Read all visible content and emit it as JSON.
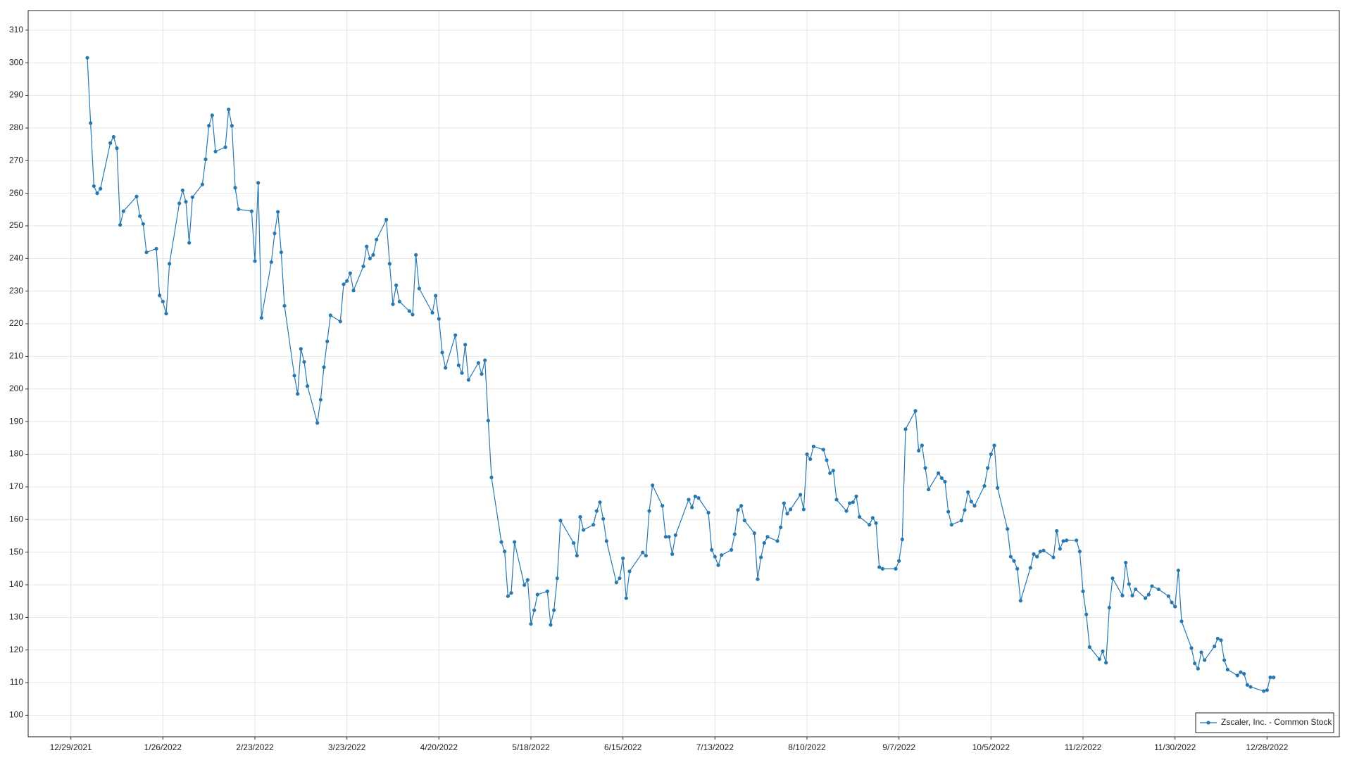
{
  "chart_data": {
    "type": "line",
    "series": [
      {
        "name": "Zscaler, Inc. - Common Stock",
        "color": "#2878b0",
        "values": [
          301.5,
          281.5,
          262.2,
          260,
          261.4,
          275.4,
          277.3,
          273.8,
          250.3,
          254.5,
          259,
          253,
          250.6,
          241.9,
          243,
          228.7,
          226.8,
          223.1,
          238.4,
          256.9,
          260.9,
          257.4,
          244.8,
          258.8,
          262.7,
          270.4,
          280.7,
          283.9,
          272.8,
          274.1,
          285.7,
          280.7,
          261.7,
          255.1,
          254.5,
          239.2,
          263.2,
          221.8,
          238.9,
          247.7,
          254.3,
          241.9,
          225.5,
          204.1,
          198.5,
          212.3,
          208.3,
          200.9,
          189.6,
          196.7,
          206.7,
          214.6,
          222.6,
          220.7,
          232.1,
          233.1,
          235.5,
          230.2,
          237.6,
          243.7,
          240,
          241.1,
          245.8,
          251.9,
          238.4,
          226,
          231.8,
          226.8,
          223.9,
          222.8,
          241.1,
          230.8,
          223.4,
          228.6,
          221.5,
          211.2,
          206.5,
          216.5,
          207.3,
          204.9,
          213.6,
          202.8,
          208,
          204.6,
          208.8,
          190.3,
          172.9,
          153.1,
          150.2,
          136.5,
          137.5,
          153.1,
          139.9,
          141.5,
          128,
          132.2,
          137,
          138,
          127.7,
          132.2,
          142,
          159.7,
          152.8,
          148.9,
          160.8,
          156.8,
          158.4,
          162.6,
          165.3,
          160.2,
          153.4,
          140.7,
          142,
          148.1,
          135.9,
          144.1,
          149.9,
          148.9,
          162.6,
          170.5,
          164.2,
          154.7,
          154.7,
          149.4,
          155.2,
          166.1,
          163.7,
          167.1,
          166.6,
          162.1,
          150.7,
          148.6,
          146,
          149.1,
          150.7,
          155.5,
          162.9,
          164.2,
          159.7,
          155.8,
          141.7,
          148.4,
          152.8,
          154.7,
          153.4,
          157.6,
          165,
          161.8,
          163.1,
          167.6,
          163.1,
          180,
          178.5,
          182.4,
          181.4,
          178.2,
          174.2,
          175,
          166.1,
          162.6,
          165,
          165.3,
          167.1,
          160.8,
          158.4,
          160.5,
          158.9,
          145.4,
          144.9,
          144.9,
          147.3,
          153.9,
          187.7,
          193.3,
          181.1,
          182.7,
          175.8,
          169.2,
          174.2,
          172.7,
          171.6,
          162.4,
          158.4,
          159.7,
          162.9,
          168.4,
          165.5,
          164.2,
          170.3,
          175.8,
          180,
          182.7,
          169.7,
          157.1,
          148.6,
          147.3,
          144.9,
          135.1,
          145.2,
          149.4,
          148.6,
          150.2,
          150.5,
          148.4,
          156.5,
          151,
          153.4,
          153.6,
          153.6,
          150.2,
          138,
          130.9,
          120.9,
          117.2,
          119.6,
          116.1,
          133,
          142,
          136.7,
          146.8,
          140.2,
          136.7,
          138.6,
          135.9,
          137,
          139.6,
          138.6,
          136.5,
          134.6,
          133.3,
          144.4,
          128.8,
          120.6,
          115.9,
          114.3,
          119.3,
          116.9,
          121.1,
          123.5,
          123,
          116.9,
          114,
          112.2,
          113.2,
          112.7,
          109.3,
          108.7,
          107.4,
          107.7,
          111.6,
          111.6
        ]
      }
    ],
    "x": [
      "1/3/2022",
      "1/4/2022",
      "1/5/2022",
      "1/6/2022",
      "1/7/2022",
      "1/10/2022",
      "1/11/2022",
      "1/12/2022",
      "1/13/2022",
      "1/14/2022",
      "1/18/2022",
      "1/19/2022",
      "1/20/2022",
      "1/21/2022",
      "1/24/2022",
      "1/25/2022",
      "1/26/2022",
      "1/27/2022",
      "1/28/2022",
      "1/31/2022",
      "2/1/2022",
      "2/2/2022",
      "2/3/2022",
      "2/4/2022",
      "2/7/2022",
      "2/8/2022",
      "2/9/2022",
      "2/10/2022",
      "2/11/2022",
      "2/14/2022",
      "2/15/2022",
      "2/16/2022",
      "2/17/2022",
      "2/18/2022",
      "2/22/2022",
      "2/23/2022",
      "2/24/2022",
      "2/25/2022",
      "2/28/2022",
      "3/1/2022",
      "3/2/2022",
      "3/3/2022",
      "3/4/2022",
      "3/7/2022",
      "3/8/2022",
      "3/9/2022",
      "3/10/2022",
      "3/11/2022",
      "3/14/2022",
      "3/15/2022",
      "3/16/2022",
      "3/17/2022",
      "3/18/2022",
      "3/21/2022",
      "3/22/2022",
      "3/23/2022",
      "3/24/2022",
      "3/25/2022",
      "3/28/2022",
      "3/29/2022",
      "3/30/2022",
      "3/31/2022",
      "4/1/2022",
      "4/4/2022",
      "4/5/2022",
      "4/6/2022",
      "4/7/2022",
      "4/8/2022",
      "4/11/2022",
      "4/12/2022",
      "4/13/2022",
      "4/14/2022",
      "4/18/2022",
      "4/19/2022",
      "4/20/2022",
      "4/21/2022",
      "4/22/2022",
      "4/25/2022",
      "4/26/2022",
      "4/27/2022",
      "4/28/2022",
      "4/29/2022",
      "5/2/2022",
      "5/3/2022",
      "5/4/2022",
      "5/5/2022",
      "5/6/2022",
      "5/9/2022",
      "5/10/2022",
      "5/11/2022",
      "5/12/2022",
      "5/13/2022",
      "5/16/2022",
      "5/17/2022",
      "5/18/2022",
      "5/19/2022",
      "5/20/2022",
      "5/23/2022",
      "5/24/2022",
      "5/25/2022",
      "5/26/2022",
      "5/27/2022",
      "5/31/2022",
      "6/1/2022",
      "6/2/2022",
      "6/3/2022",
      "6/6/2022",
      "6/7/2022",
      "6/8/2022",
      "6/9/2022",
      "6/10/2022",
      "6/13/2022",
      "6/14/2022",
      "6/15/2022",
      "6/16/2022",
      "6/17/2022",
      "6/21/2022",
      "6/22/2022",
      "6/23/2022",
      "6/24/2022",
      "6/27/2022",
      "6/28/2022",
      "6/29/2022",
      "6/30/2022",
      "7/1/2022",
      "7/5/2022",
      "7/6/2022",
      "7/7/2022",
      "7/8/2022",
      "7/11/2022",
      "7/12/2022",
      "7/13/2022",
      "7/14/2022",
      "7/15/2022",
      "7/18/2022",
      "7/19/2022",
      "7/20/2022",
      "7/21/2022",
      "7/22/2022",
      "7/25/2022",
      "7/26/2022",
      "7/27/2022",
      "7/28/2022",
      "7/29/2022",
      "8/1/2022",
      "8/2/2022",
      "8/3/2022",
      "8/4/2022",
      "8/5/2022",
      "8/8/2022",
      "8/9/2022",
      "8/10/2022",
      "8/11/2022",
      "8/12/2022",
      "8/15/2022",
      "8/16/2022",
      "8/17/2022",
      "8/18/2022",
      "8/19/2022",
      "8/22/2022",
      "8/23/2022",
      "8/24/2022",
      "8/25/2022",
      "8/26/2022",
      "8/29/2022",
      "8/30/2022",
      "8/31/2022",
      "9/1/2022",
      "9/2/2022",
      "9/6/2022",
      "9/7/2022",
      "9/8/2022",
      "9/9/2022",
      "9/12/2022",
      "9/13/2022",
      "9/14/2022",
      "9/15/2022",
      "9/16/2022",
      "9/19/2022",
      "9/20/2022",
      "9/21/2022",
      "9/22/2022",
      "9/23/2022",
      "9/26/2022",
      "9/27/2022",
      "9/28/2022",
      "9/29/2022",
      "9/30/2022",
      "10/3/2022",
      "10/4/2022",
      "10/5/2022",
      "10/6/2022",
      "10/7/2022",
      "10/10/2022",
      "10/11/2022",
      "10/12/2022",
      "10/13/2022",
      "10/14/2022",
      "10/17/2022",
      "10/18/2022",
      "10/19/2022",
      "10/20/2022",
      "10/21/2022",
      "10/24/2022",
      "10/25/2022",
      "10/26/2022",
      "10/27/2022",
      "10/28/2022",
      "10/31/2022",
      "11/1/2022",
      "11/2/2022",
      "11/3/2022",
      "11/4/2022",
      "11/7/2022",
      "11/8/2022",
      "11/9/2022",
      "11/10/2022",
      "11/11/2022",
      "11/14/2022",
      "11/15/2022",
      "11/16/2022",
      "11/17/2022",
      "11/18/2022",
      "11/21/2022",
      "11/22/2022",
      "11/23/2022",
      "11/25/2022",
      "11/28/2022",
      "11/29/2022",
      "11/30/2022",
      "12/1/2022",
      "12/2/2022",
      "12/5/2022",
      "12/6/2022",
      "12/7/2022",
      "12/8/2022",
      "12/9/2022",
      "12/12/2022",
      "12/13/2022",
      "12/14/2022",
      "12/15/2022",
      "12/16/2022",
      "12/19/2022",
      "12/20/2022",
      "12/21/2022",
      "12/22/2022",
      "12/23/2022",
      "12/27/2022",
      "12/28/2022",
      "12/29/2022",
      "12/30/2022"
    ],
    "xlim": [
      "12/16/2021",
      "1/19/2023"
    ],
    "xticks": [
      "12/29/2021",
      "1/26/2022",
      "2/23/2022",
      "3/23/2022",
      "4/20/2022",
      "5/18/2022",
      "6/15/2022",
      "7/13/2022",
      "8/10/2022",
      "9/7/2022",
      "10/5/2022",
      "11/2/2022",
      "11/30/2022",
      "12/28/2022"
    ],
    "ylim": [
      93.4,
      316
    ],
    "yticks": [
      100,
      110,
      120,
      130,
      140,
      150,
      160,
      170,
      180,
      190,
      200,
      210,
      220,
      230,
      240,
      250,
      260,
      270,
      280,
      290,
      300,
      310
    ],
    "grid": true,
    "markers": true,
    "legend": "lower right"
  }
}
